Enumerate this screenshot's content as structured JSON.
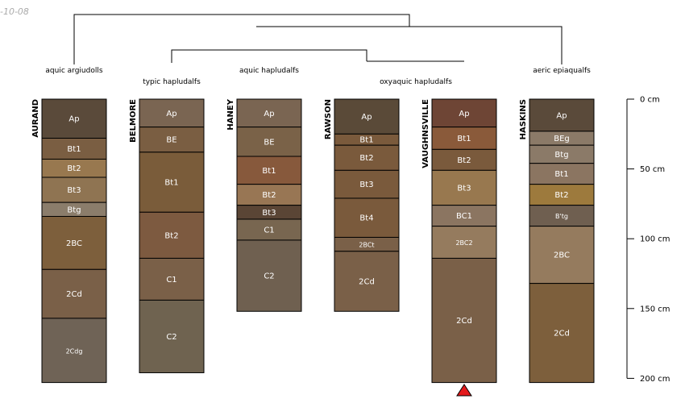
{
  "date_stamp": "-10-08",
  "depth_axis": {
    "max_cm": 200,
    "ticks": [
      {
        "value": 0,
        "label": "0 cm"
      },
      {
        "value": 50,
        "label": "50 cm"
      },
      {
        "value": 100,
        "label": "100 cm"
      },
      {
        "value": 150,
        "label": "150 cm"
      },
      {
        "value": 200,
        "label": "200 cm"
      }
    ]
  },
  "group_labels": [
    "aquic argiudolls",
    "typic hapludalfs",
    "aquic hapludalfs",
    "oxyaquic hapludalfs",
    "aeric epiaqualfs"
  ],
  "marker": {
    "profile_index": 4,
    "color": "#e41a1c"
  },
  "profiles": [
    {
      "name": "AURAND",
      "horizons": [
        {
          "name": "Ap",
          "top": 0,
          "bottom": 28,
          "color": "#5a4a3a"
        },
        {
          "name": "Bt1",
          "top": 28,
          "bottom": 43,
          "color": "#7a5e42"
        },
        {
          "name": "Bt2",
          "top": 43,
          "bottom": 56,
          "color": "#98784f"
        },
        {
          "name": "Bt3",
          "top": 56,
          "bottom": 74,
          "color": "#8f7452"
        },
        {
          "name": "Btg",
          "top": 74,
          "bottom": 84,
          "color": "#8b7d6b"
        },
        {
          "name": "2BC",
          "top": 84,
          "bottom": 122,
          "color": "#7d5f3c"
        },
        {
          "name": "2Cd",
          "top": 122,
          "bottom": 157,
          "color": "#7a6048"
        },
        {
          "name": "2Cdg",
          "top": 157,
          "bottom": 203,
          "color": "#6f6356"
        }
      ]
    },
    {
      "name": "BELMORE",
      "horizons": [
        {
          "name": "Ap",
          "top": 0,
          "bottom": 20,
          "color": "#7a6552"
        },
        {
          "name": "BE",
          "top": 20,
          "bottom": 38,
          "color": "#7a5e42"
        },
        {
          "name": "Bt1",
          "top": 38,
          "bottom": 81,
          "color": "#7a5c3a"
        },
        {
          "name": "Bt2",
          "top": 81,
          "bottom": 114,
          "color": "#7d5a40"
        },
        {
          "name": "C1",
          "top": 114,
          "bottom": 144,
          "color": "#7a6048"
        },
        {
          "name": "C2",
          "top": 144,
          "bottom": 196,
          "color": "#6f6350"
        }
      ]
    },
    {
      "name": "HANEY",
      "horizons": [
        {
          "name": "Ap",
          "top": 0,
          "bottom": 20,
          "color": "#7a6552"
        },
        {
          "name": "BE",
          "top": 20,
          "bottom": 41,
          "color": "#7a6248"
        },
        {
          "name": "Bt1",
          "top": 41,
          "bottom": 61,
          "color": "#87593c"
        },
        {
          "name": "Bt2",
          "top": 61,
          "bottom": 76,
          "color": "#987654"
        },
        {
          "name": "Bt3",
          "top": 76,
          "bottom": 86,
          "color": "#5a4535"
        },
        {
          "name": "C1",
          "top": 86,
          "bottom": 101,
          "color": "#786650"
        },
        {
          "name": "C2",
          "top": 101,
          "bottom": 152,
          "color": "#6f6050"
        }
      ]
    },
    {
      "name": "RAWSON",
      "horizons": [
        {
          "name": "Ap",
          "top": 0,
          "bottom": 25,
          "color": "#5a4a38"
        },
        {
          "name": "Bt1",
          "top": 25,
          "bottom": 33,
          "color": "#7a5a3c"
        },
        {
          "name": "Bt2",
          "top": 33,
          "bottom": 51,
          "color": "#7a5a3c"
        },
        {
          "name": "Bt3",
          "top": 51,
          "bottom": 71,
          "color": "#7a5a3c"
        },
        {
          "name": "Bt4",
          "top": 71,
          "bottom": 99,
          "color": "#7a5a3c"
        },
        {
          "name": "2BCt",
          "top": 99,
          "bottom": 109,
          "color": "#7a6048"
        },
        {
          "name": "2Cd",
          "top": 109,
          "bottom": 152,
          "color": "#7a6048"
        }
      ]
    },
    {
      "name": "VAUGHNSVILLE",
      "horizons": [
        {
          "name": "Ap",
          "top": 0,
          "bottom": 20,
          "color": "#6e4535"
        },
        {
          "name": "Bt1",
          "top": 20,
          "bottom": 36,
          "color": "#8a5a3a"
        },
        {
          "name": "Bt2",
          "top": 36,
          "bottom": 51,
          "color": "#7a5a3c"
        },
        {
          "name": "Bt3",
          "top": 51,
          "bottom": 76,
          "color": "#98784f"
        },
        {
          "name": "BC1",
          "top": 76,
          "bottom": 91,
          "color": "#8b7561"
        },
        {
          "name": "2BC2",
          "top": 91,
          "bottom": 114,
          "color": "#957b5e"
        },
        {
          "name": "2Cd",
          "top": 114,
          "bottom": 203,
          "color": "#7a6048"
        }
      ]
    },
    {
      "name": "HASKINS",
      "horizons": [
        {
          "name": "Ap",
          "top": 0,
          "bottom": 23,
          "color": "#5a4a3a"
        },
        {
          "name": "BEg",
          "top": 23,
          "bottom": 33,
          "color": "#8b7a68"
        },
        {
          "name": "Btg",
          "top": 33,
          "bottom": 46,
          "color": "#8b7a68"
        },
        {
          "name": "Bt1",
          "top": 46,
          "bottom": 61,
          "color": "#8b7561"
        },
        {
          "name": "Bt2",
          "top": 61,
          "bottom": 76,
          "color": "#9d7a3d"
        },
        {
          "name": "B'tg",
          "top": 76,
          "bottom": 91,
          "color": "#6f5f50"
        },
        {
          "name": "2BC",
          "top": 91,
          "bottom": 132,
          "color": "#957b5e"
        },
        {
          "name": "2Cd",
          "top": 132,
          "bottom": 203,
          "color": "#7d5f3c"
        }
      ]
    }
  ]
}
